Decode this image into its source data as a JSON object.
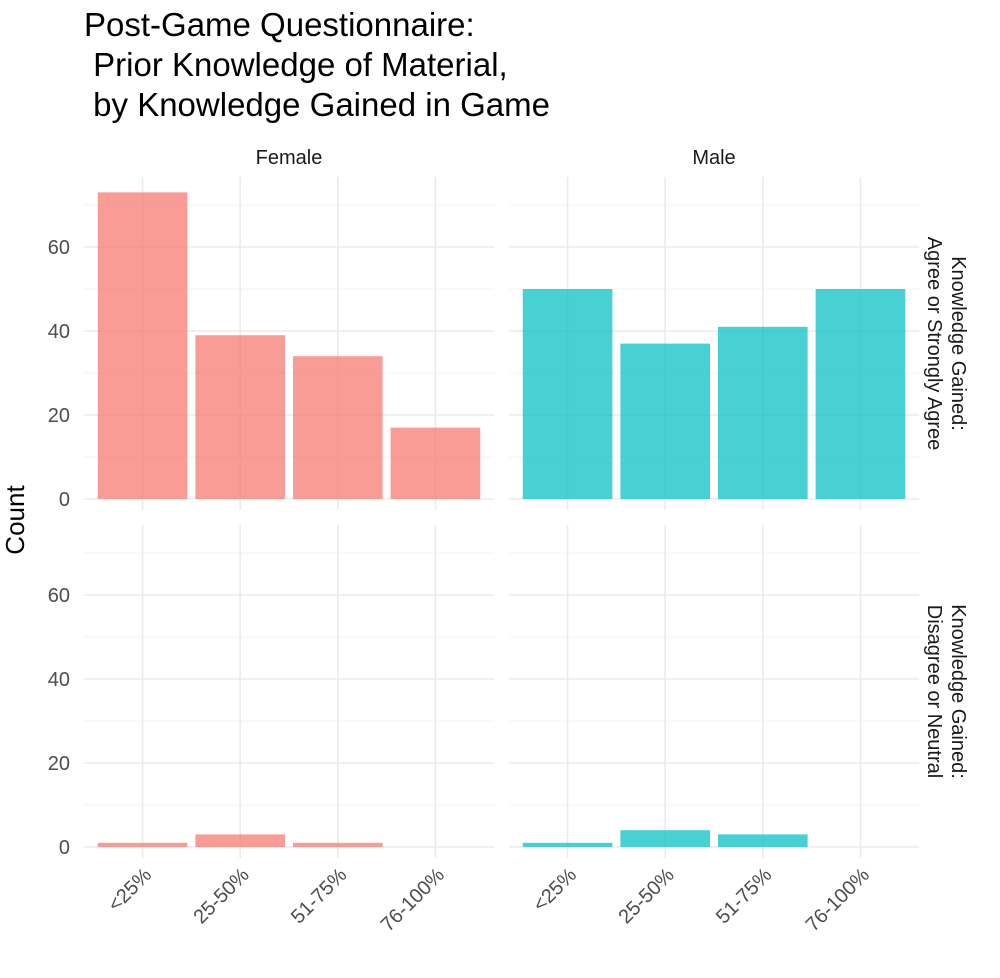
{
  "chart_data": {
    "type": "bar",
    "title_lines": [
      "Post-Game Questionnaire:",
      " Prior Knowledge of Material,",
      " by Knowledge Gained in Game"
    ],
    "xlabel": "",
    "ylabel": "Count",
    "ylim": [
      0,
      76
    ],
    "y_ticks": [
      0,
      20,
      40,
      60
    ],
    "categories": [
      "<25%",
      "25-50%",
      "51-75%",
      "76-100%"
    ],
    "column_facets": [
      "Female",
      "Male"
    ],
    "row_facets": [
      [
        "Knowledge Gained:",
        "Agree or Strongly Agree"
      ],
      [
        "Knowledge Gained:",
        "Disagree or Neutral"
      ]
    ],
    "colors": {
      "Female": "#F8766D",
      "Male": "#00BFC4"
    },
    "bar_opacity": 0.72,
    "grid": true,
    "legend": "none",
    "panels": [
      {
        "row": 0,
        "col": 0,
        "gender": "Female",
        "values": [
          73,
          39,
          34,
          17
        ]
      },
      {
        "row": 0,
        "col": 1,
        "gender": "Male",
        "values": [
          50,
          37,
          41,
          50
        ]
      },
      {
        "row": 1,
        "col": 0,
        "gender": "Female",
        "values": [
          1,
          3,
          1,
          0
        ]
      },
      {
        "row": 1,
        "col": 1,
        "gender": "Male",
        "values": [
          1,
          4,
          3,
          0
        ]
      }
    ]
  }
}
